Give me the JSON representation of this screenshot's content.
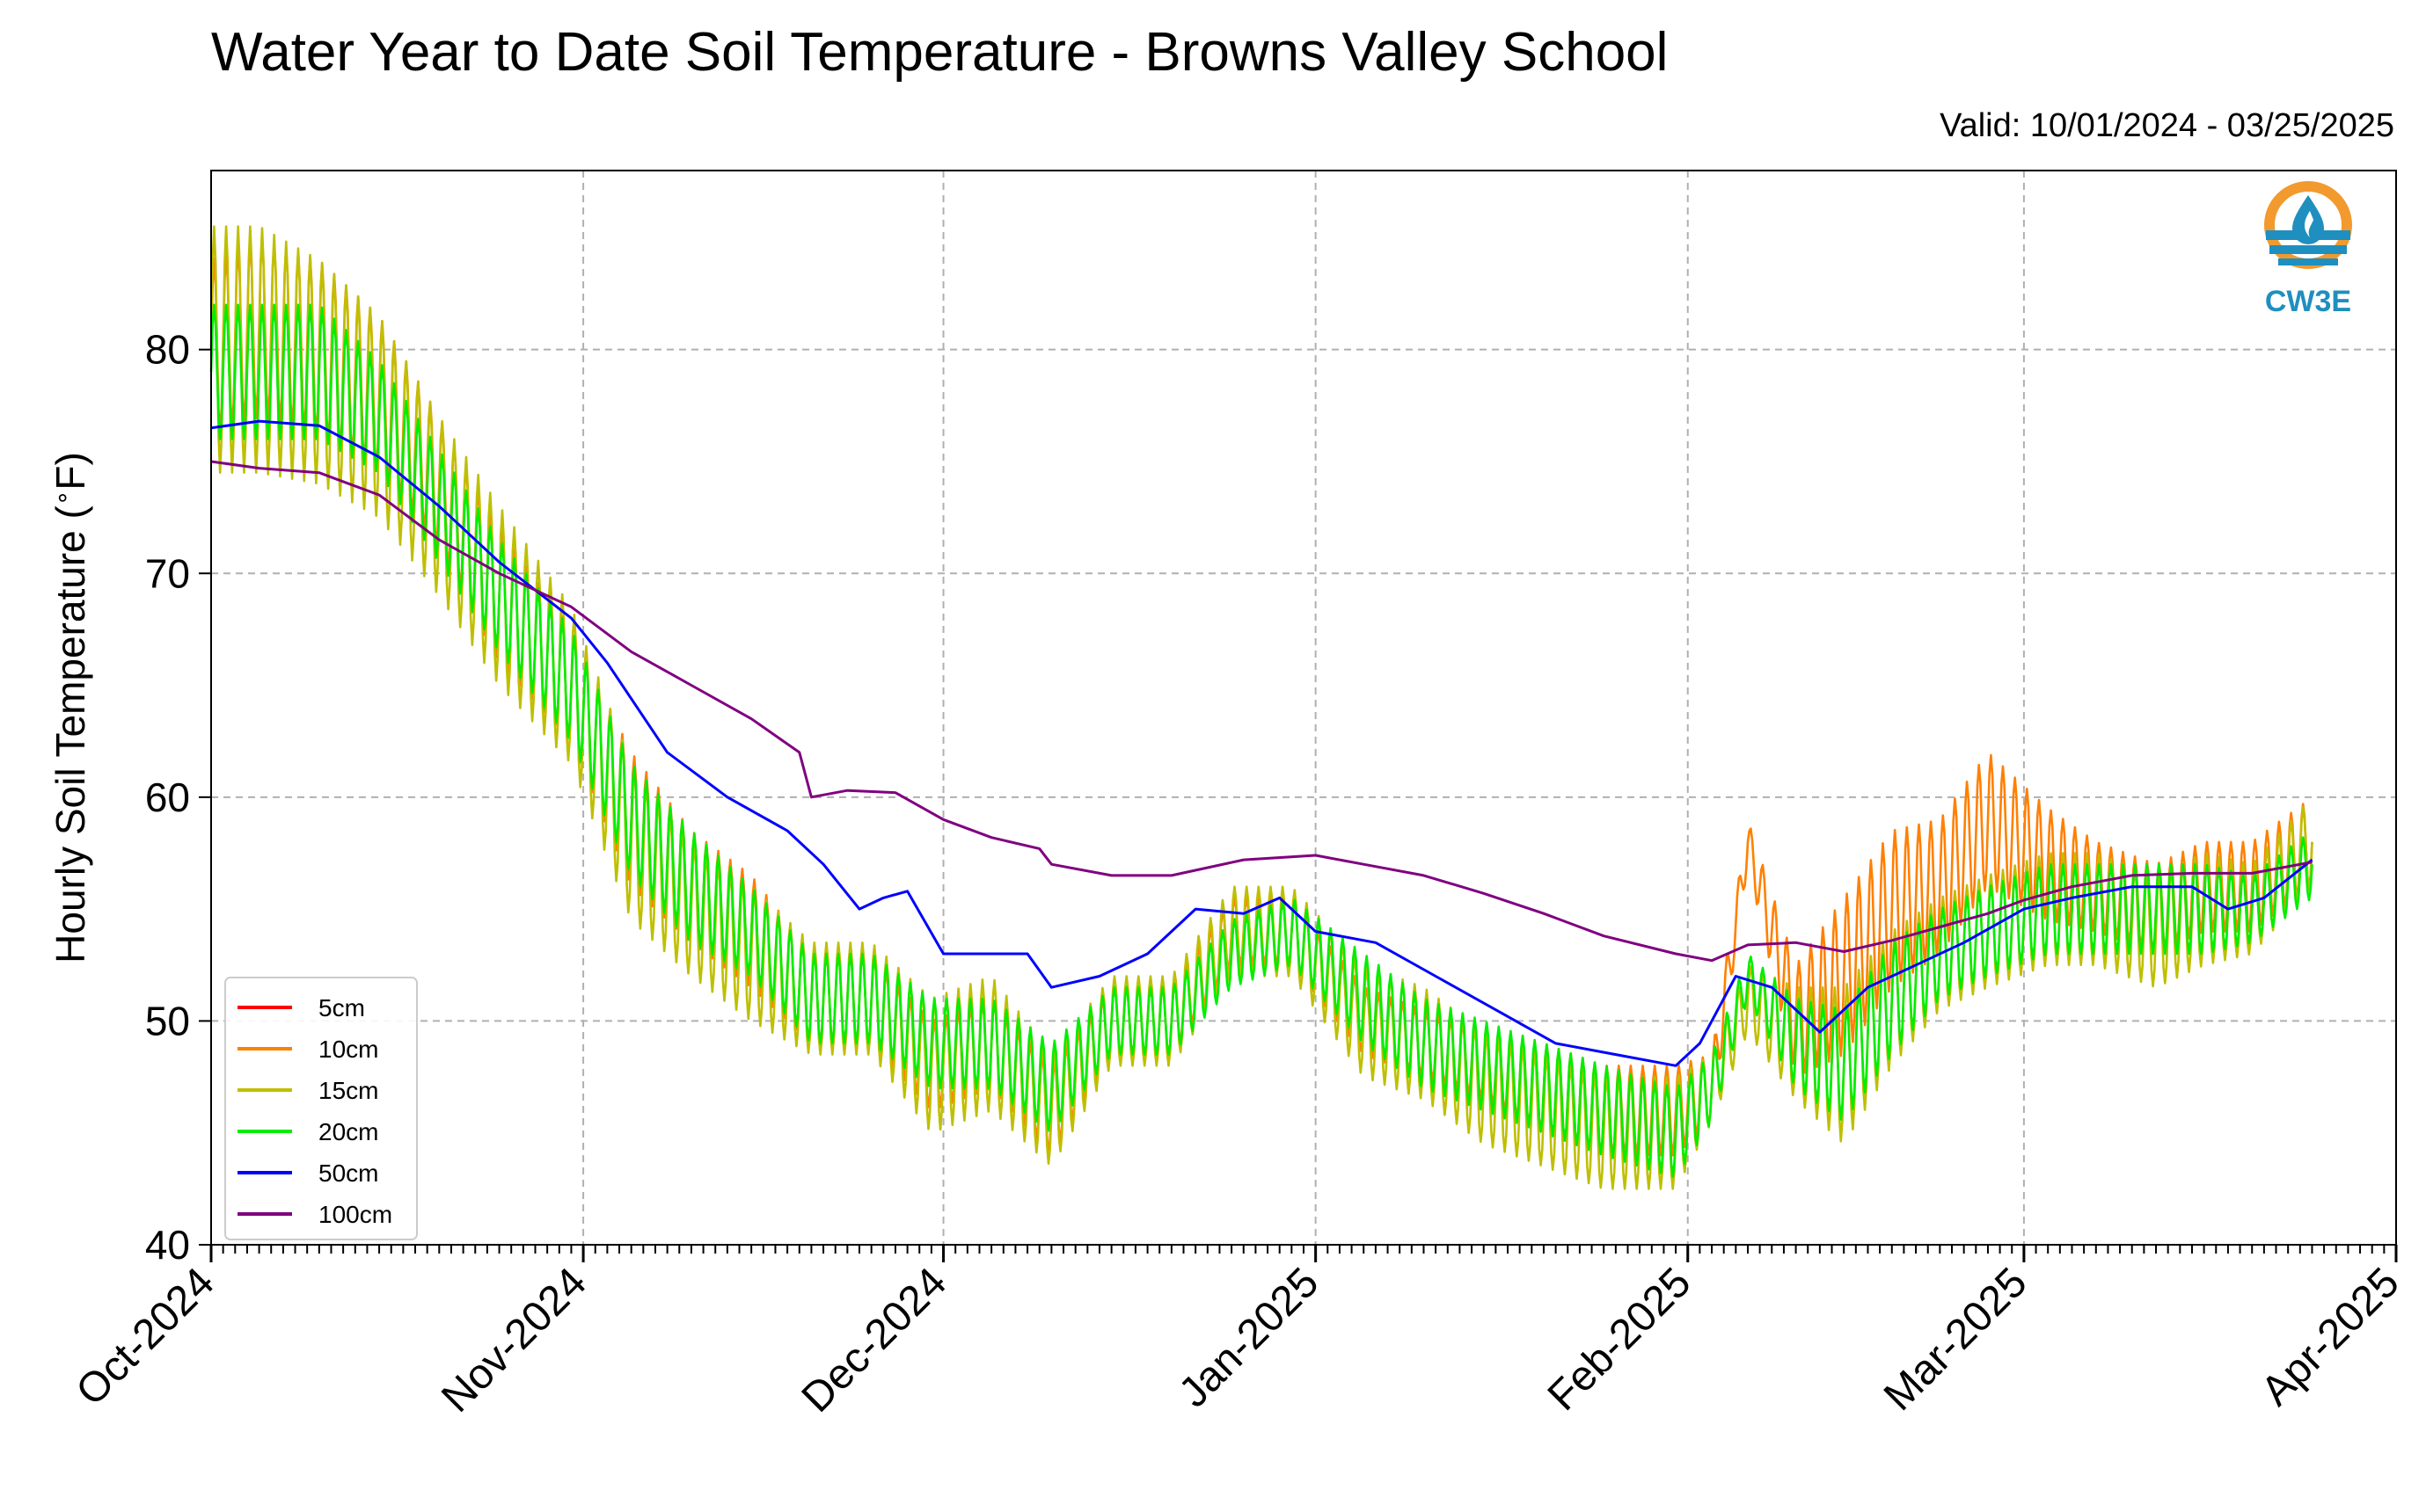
{
  "title": "Water Year to Date Soil Temperature - Browns Valley School",
  "valid_label": "Valid: 10/01/2024 - 03/25/2025",
  "logo_text": "CW3E",
  "colors": {
    "5cm": "#ff0000",
    "10cm": "#ff8000",
    "15cm": "#bfbf00",
    "20cm": "#00ff00",
    "50cm": "#0000ff",
    "100cm": "#800080",
    "grid": "#b0b0b0",
    "logo_orange": "#f29a2e",
    "logo_blue": "#1f8fbf"
  },
  "chart_data": {
    "type": "line",
    "title": "Water Year to Date Soil Temperature - Browns Valley School",
    "xlabel": "",
    "ylabel": "Hourly Soil Temperature (°F)",
    "ylabel_parts": [
      "Hourly Soil Temperature (",
      "∘",
      "F)"
    ],
    "xlim": [
      "2024-10-01",
      "2025-04-01"
    ],
    "ylim": [
      40,
      88
    ],
    "yticks": [
      40,
      50,
      60,
      70,
      80
    ],
    "xticks": [
      {
        "date": "2024-10-01",
        "label": "Oct-2024"
      },
      {
        "date": "2024-11-01",
        "label": "Nov-2024"
      },
      {
        "date": "2024-12-01",
        "label": "Dec-2024"
      },
      {
        "date": "2025-01-01",
        "label": "Jan-2025"
      },
      {
        "date": "2025-02-01",
        "label": "Feb-2025"
      },
      {
        "date": "2025-03-01",
        "label": "Mar-2025"
      },
      {
        "date": "2025-04-01",
        "label": "Apr-2025"
      }
    ],
    "grid": true,
    "legend_position": "lower-left",
    "series": [
      {
        "name": "5cm",
        "color": "#ff0000",
        "dates": [],
        "values": []
      },
      {
        "name": "10cm",
        "color": "#ff8000",
        "dates": [
          "2024-10-01",
          "2024-10-05",
          "2024-10-10",
          "2024-10-15",
          "2024-10-20",
          "2024-10-25",
          "2024-10-31",
          "2024-11-05",
          "2024-11-10",
          "2024-11-15",
          "2024-11-20",
          "2024-11-25",
          "2024-11-30",
          "2024-12-05",
          "2024-12-10",
          "2024-12-15",
          "2024-12-20",
          "2024-12-25",
          "2024-12-30",
          "2025-01-05",
          "2025-01-10",
          "2025-01-15",
          "2025-01-20",
          "2025-01-25",
          "2025-01-31",
          "2025-02-03",
          "2025-02-06",
          "2025-02-10",
          "2025-02-14",
          "2025-02-18",
          "2025-02-22",
          "2025-02-26",
          "2025-03-03",
          "2025-03-07",
          "2025-03-12",
          "2025-03-16",
          "2025-03-20",
          "2025-03-25"
        ],
        "values": [
          80,
          81,
          80,
          78,
          74,
          69,
          65,
          59,
          56,
          54,
          51,
          51,
          48,
          49,
          46,
          50,
          50,
          54,
          54,
          50,
          49,
          48,
          47,
          46,
          46,
          47,
          58,
          50,
          52,
          55,
          56,
          59,
          57,
          56,
          55,
          56,
          56,
          58
        ],
        "amplitude": [
          4,
          4,
          4,
          3.5,
          3,
          3,
          2.5,
          3,
          2.5,
          2.5,
          2,
          2,
          2,
          2,
          2,
          1.5,
          1.5,
          1.5,
          1.5,
          1.5,
          1.5,
          1.5,
          2,
          2,
          2,
          1.5,
          1,
          2.5,
          3.5,
          3.5,
          3,
          3,
          2.5,
          2,
          2,
          2,
          2,
          2
        ]
      },
      {
        "name": "15cm",
        "color": "#bfbf00",
        "dates": [
          "2024-10-01",
          "2024-10-05",
          "2024-10-10",
          "2024-10-15",
          "2024-10-20",
          "2024-10-25",
          "2024-10-31",
          "2024-11-05",
          "2024-11-10",
          "2024-11-15",
          "2024-11-20",
          "2024-11-25",
          "2024-11-30",
          "2024-12-05",
          "2024-12-10",
          "2024-12-15",
          "2024-12-20",
          "2024-12-25",
          "2024-12-30",
          "2025-01-05",
          "2025-01-10",
          "2025-01-15",
          "2025-01-20",
          "2025-01-25",
          "2025-01-31",
          "2025-02-03",
          "2025-02-06",
          "2025-02-10",
          "2025-02-14",
          "2025-02-18",
          "2025-02-22",
          "2025-02-26",
          "2025-03-03",
          "2025-03-07",
          "2025-03-12",
          "2025-03-16",
          "2025-03-20",
          "2025-03-25"
        ],
        "values": [
          80,
          80,
          79,
          77,
          73,
          69,
          65,
          58,
          55,
          53,
          51,
          51,
          48,
          49,
          46,
          50,
          50,
          54,
          54,
          50,
          49,
          47,
          46,
          45,
          45,
          47,
          51,
          49,
          48,
          51,
          53,
          54,
          55,
          55,
          54,
          55,
          55,
          58
        ],
        "amplitude": [
          5.5,
          5.5,
          5,
          4.5,
          4,
          4,
          3.5,
          3.5,
          3,
          3,
          2.5,
          2.5,
          3,
          3,
          2.5,
          2,
          2,
          2,
          2,
          2.5,
          2.5,
          2.5,
          2.5,
          2.5,
          2.5,
          1.5,
          1.5,
          2.5,
          3.5,
          3,
          2.5,
          2.5,
          2.5,
          2.5,
          2.5,
          2.5,
          2,
          2
        ]
      },
      {
        "name": "20cm",
        "color": "#00ee00",
        "dates": [
          "2024-10-01",
          "2024-10-05",
          "2024-10-10",
          "2024-10-15",
          "2024-10-20",
          "2024-10-25",
          "2024-10-31",
          "2024-11-05",
          "2024-11-10",
          "2024-11-15",
          "2024-11-20",
          "2024-11-25",
          "2024-11-30",
          "2024-12-05",
          "2024-12-10",
          "2024-12-15",
          "2024-12-20",
          "2024-12-25",
          "2024-12-30",
          "2025-01-05",
          "2025-01-10",
          "2025-01-15",
          "2025-01-20",
          "2025-01-25",
          "2025-01-31",
          "2025-02-03",
          "2025-02-06",
          "2025-02-10",
          "2025-02-14",
          "2025-02-18",
          "2025-02-22",
          "2025-02-26",
          "2025-03-03",
          "2025-03-07",
          "2025-03-12",
          "2025-03-16",
          "2025-03-20",
          "2025-03-25"
        ],
        "values": [
          79,
          79,
          79,
          77,
          73,
          69,
          65,
          59,
          56,
          54,
          51,
          51,
          49,
          49,
          47,
          50,
          50,
          53,
          54,
          51,
          49,
          48,
          47,
          46,
          45,
          47,
          52,
          49,
          48,
          51,
          53,
          54,
          55,
          55,
          55,
          55,
          55,
          57
        ],
        "amplitude": [
          3,
          3,
          3,
          2.5,
          2.5,
          2.5,
          2.5,
          2.5,
          2.5,
          2,
          2,
          2,
          2,
          2,
          2,
          1.5,
          1.5,
          1.5,
          1.5,
          2,
          2,
          2,
          2,
          2,
          2,
          1.5,
          1,
          2,
          2.5,
          2.5,
          2,
          2,
          2,
          2,
          2,
          2,
          1.5,
          1.5
        ]
      },
      {
        "name": "50cm",
        "color": "#0000ff",
        "dates": [
          "2024-10-01",
          "2024-10-05",
          "2024-10-10",
          "2024-10-15",
          "2024-10-20",
          "2024-10-25",
          "2024-10-31",
          "2024-11-03",
          "2024-11-08",
          "2024-11-13",
          "2024-11-18",
          "2024-11-21",
          "2024-11-24",
          "2024-11-26",
          "2024-11-28",
          "2024-12-01",
          "2024-12-05",
          "2024-12-08",
          "2024-12-10",
          "2024-12-14",
          "2024-12-18",
          "2024-12-22",
          "2024-12-26",
          "2024-12-29",
          "2025-01-01",
          "2025-01-06",
          "2025-01-11",
          "2025-01-16",
          "2025-01-21",
          "2025-01-26",
          "2025-01-31",
          "2025-02-02",
          "2025-02-05",
          "2025-02-08",
          "2025-02-12",
          "2025-02-16",
          "2025-02-20",
          "2025-02-24",
          "2025-03-01",
          "2025-03-05",
          "2025-03-10",
          "2025-03-15",
          "2025-03-18",
          "2025-03-21",
          "2025-03-25"
        ],
        "values": [
          76.5,
          76.8,
          76.6,
          75.2,
          73,
          70.5,
          68,
          66,
          62,
          60,
          58.5,
          57,
          55,
          55.5,
          55.8,
          53,
          53,
          53,
          51.5,
          52,
          53,
          55,
          54.8,
          55.5,
          54,
          53.5,
          52,
          50.5,
          49,
          48.5,
          48,
          49,
          52,
          51.5,
          49.5,
          51.5,
          52.5,
          53.5,
          55,
          55.5,
          56,
          56,
          55,
          55.5,
          57.2
        ]
      },
      {
        "name": "100cm",
        "color": "#800080",
        "dates": [
          "2024-10-01",
          "2024-10-05",
          "2024-10-10",
          "2024-10-15",
          "2024-10-20",
          "2024-10-25",
          "2024-10-31",
          "2024-11-05",
          "2024-11-10",
          "2024-11-15",
          "2024-11-19",
          "2024-11-20",
          "2024-11-23",
          "2024-11-27",
          "2024-12-01",
          "2024-12-05",
          "2024-12-09",
          "2024-12-10",
          "2024-12-15",
          "2024-12-20",
          "2024-12-26",
          "2025-01-01",
          "2025-01-05",
          "2025-01-10",
          "2025-01-15",
          "2025-01-20",
          "2025-01-25",
          "2025-01-31",
          "2025-02-03",
          "2025-02-06",
          "2025-02-10",
          "2025-02-14",
          "2025-02-18",
          "2025-02-22",
          "2025-02-26",
          "2025-03-01",
          "2025-03-05",
          "2025-03-10",
          "2025-03-15",
          "2025-03-20",
          "2025-03-25"
        ],
        "values": [
          75,
          74.7,
          74.5,
          73.5,
          71.5,
          70,
          68.5,
          66.5,
          65,
          63.5,
          62,
          60,
          60.3,
          60.2,
          59,
          58.2,
          57.7,
          57,
          56.5,
          56.5,
          57.2,
          57.4,
          57,
          56.5,
          55.7,
          54.8,
          53.8,
          53,
          52.7,
          53.4,
          53.5,
          53.1,
          53.6,
          54.2,
          54.8,
          55.4,
          56,
          56.5,
          56.6,
          56.6,
          57.1
        ]
      }
    ]
  }
}
